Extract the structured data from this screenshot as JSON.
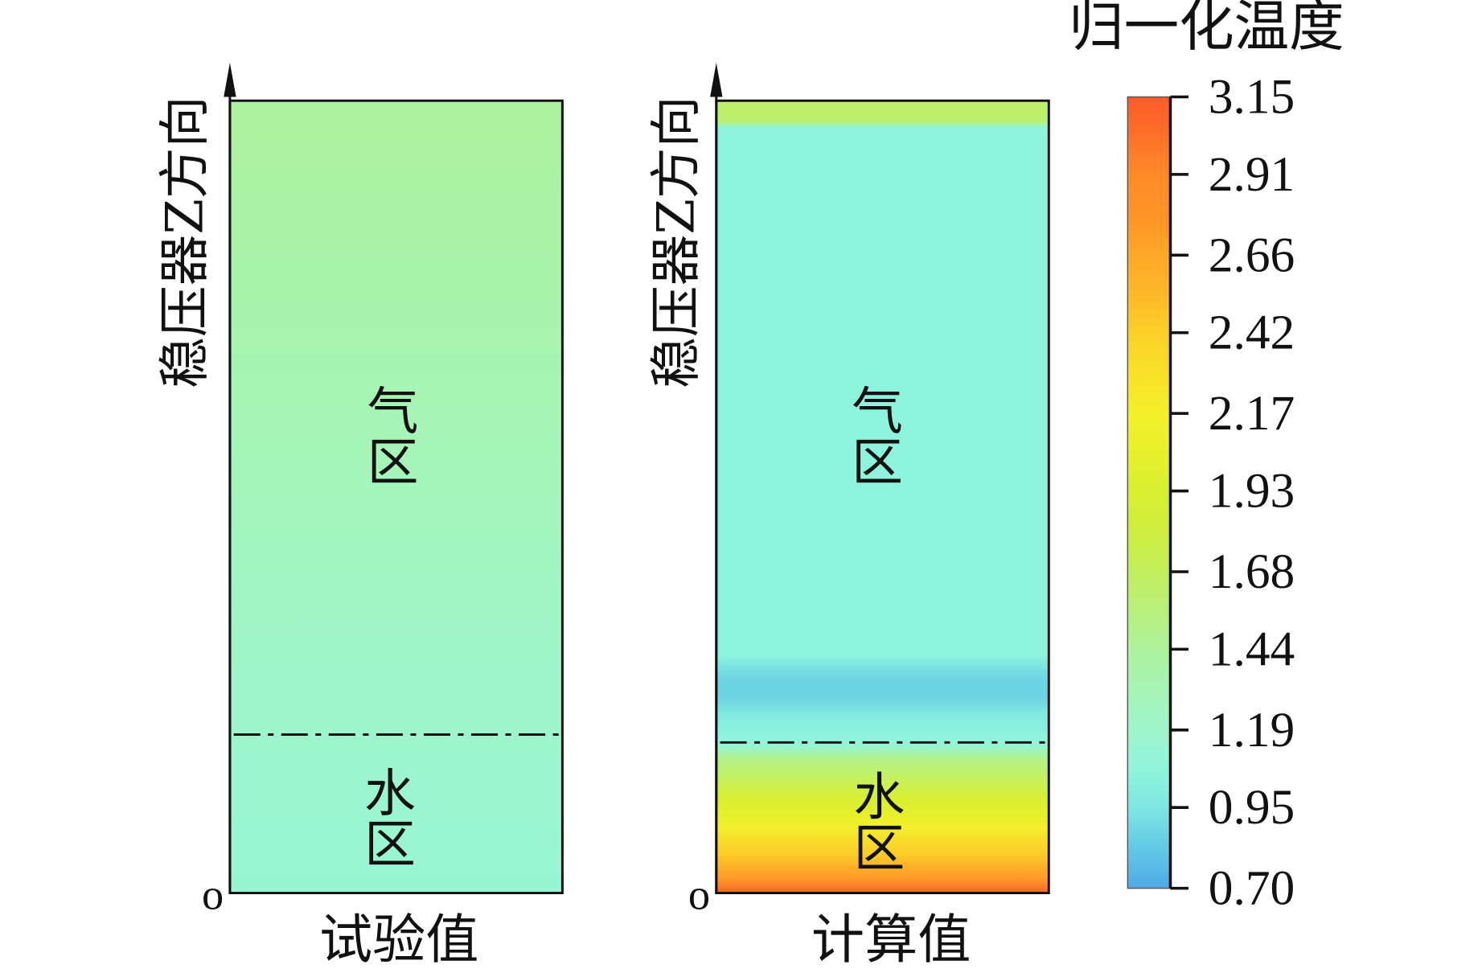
{
  "chart_data": {
    "type": "heatmap",
    "panels": [
      {
        "xlabel": "试验值",
        "ylabel": "稳压器Z方向",
        "origin_label": "o",
        "regions": [
          "气区",
          "水区"
        ],
        "interface_z": 0.2,
        "temperature_profile": [
          {
            "z": 1.0,
            "value": 1.43
          },
          {
            "z": 0.6,
            "value": 1.31
          },
          {
            "z": 0.3,
            "value": 1.2
          },
          {
            "z": 0.0,
            "value": 1.13
          }
        ]
      },
      {
        "xlabel": "计算值",
        "ylabel": "稳压器Z方向",
        "origin_label": "o",
        "regions": [
          "气区",
          "水区"
        ],
        "interface_z": 0.19,
        "temperature_profile": [
          {
            "z": 1.0,
            "value": 1.62
          },
          {
            "z": 0.975,
            "value": 1.62
          },
          {
            "z": 0.966,
            "value": 1.08
          },
          {
            "z": 0.955,
            "value": 1.05
          },
          {
            "z": 0.3,
            "value": 1.05
          },
          {
            "z": 0.282,
            "value": 0.92
          },
          {
            "z": 0.27,
            "value": 0.87
          },
          {
            "z": 0.245,
            "value": 0.87
          },
          {
            "z": 0.225,
            "value": 0.98
          },
          {
            "z": 0.2,
            "value": 1.05
          },
          {
            "z": 0.187,
            "value": 1.1
          },
          {
            "z": 0.17,
            "value": 1.5
          },
          {
            "z": 0.12,
            "value": 1.92
          },
          {
            "z": 0.084,
            "value": 2.15
          },
          {
            "z": 0.048,
            "value": 2.45
          },
          {
            "z": 0.018,
            "value": 2.75
          },
          {
            "z": 0.0,
            "value": 3.1
          }
        ]
      }
    ],
    "colorbar": {
      "title": "归一化温度",
      "ticks": [
        "3.15",
        "2.91",
        "2.66",
        "2.42",
        "2.17",
        "1.93",
        "1.68",
        "1.44",
        "1.19",
        "0.95",
        "0.70"
      ],
      "colormap": [
        {
          "value": 0.7,
          "color": "#4fa9e6"
        },
        {
          "value": 0.82,
          "color": "#62c8e6"
        },
        {
          "value": 0.95,
          "color": "#7fe6e2"
        },
        {
          "value": 1.07,
          "color": "#90f5dc"
        },
        {
          "value": 1.19,
          "color": "#a0f5cc"
        },
        {
          "value": 1.32,
          "color": "#a6f5b4"
        },
        {
          "value": 1.44,
          "color": "#aef29c"
        },
        {
          "value": 1.56,
          "color": "#b8f07c"
        },
        {
          "value": 1.68,
          "color": "#c2ee5c"
        },
        {
          "value": 1.8,
          "color": "#cfee40"
        },
        {
          "value": 1.93,
          "color": "#d8ef30"
        },
        {
          "value": 2.05,
          "color": "#e8f02c"
        },
        {
          "value": 2.17,
          "color": "#f4f02a"
        },
        {
          "value": 2.3,
          "color": "#f8e028"
        },
        {
          "value": 2.42,
          "color": "#fcd028"
        },
        {
          "value": 2.54,
          "color": "#feb828"
        },
        {
          "value": 2.66,
          "color": "#ffa828"
        },
        {
          "value": 2.78,
          "color": "#ff9428"
        },
        {
          "value": 2.91,
          "color": "#ff8a28"
        },
        {
          "value": 3.03,
          "color": "#ff7028"
        },
        {
          "value": 3.15,
          "color": "#ff5a28"
        }
      ]
    }
  }
}
